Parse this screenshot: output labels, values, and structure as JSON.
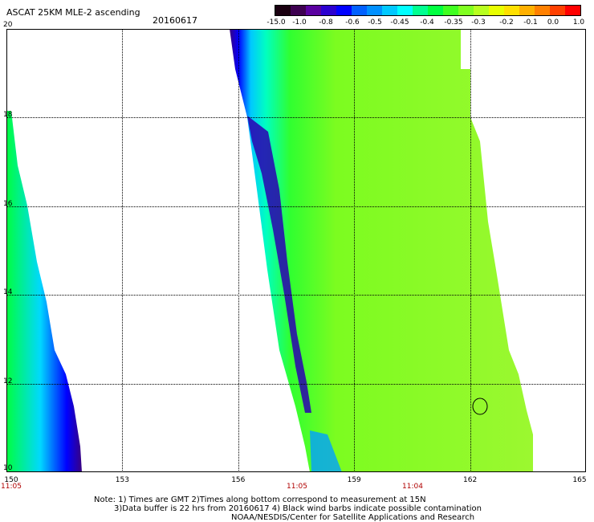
{
  "title": "ASCAT 25KM MLE-2 ascending",
  "date": "20160617",
  "colorbar": {
    "labels": [
      "-15.0",
      "-1.0",
      "-0.8",
      "-0.6",
      "-0.5",
      "-0.45",
      "-0.4",
      "-0.35",
      "-0.3",
      "-0.2",
      "-0.1",
      "0.0",
      "1.0"
    ],
    "colors": [
      "#1a0010",
      "#3d0050",
      "#5a00a0",
      "#2b00d0",
      "#0000ff",
      "#0060ff",
      "#0090ff",
      "#00c8ff",
      "#00ffff",
      "#00ff90",
      "#00ff40",
      "#40ff20",
      "#80ff20",
      "#b8ff20",
      "#e8ff00",
      "#ffe000",
      "#ffb000",
      "#ff8000",
      "#ff4000",
      "#ff0000"
    ]
  },
  "axes": {
    "y_ticks": [
      "20",
      "18",
      "16",
      "14",
      "12",
      "10"
    ],
    "x_ticks": [
      "150",
      "153",
      "156",
      "159",
      "162",
      "165"
    ],
    "time_labels": [
      "11:05",
      "11:05",
      "11:04"
    ]
  },
  "notes": {
    "line1": "Note: 1) Times are GMT 2)Times along bottom correspond to measurement at 15N",
    "line2": "3)Data buffer is 22 hrs from 20160617 4) Black wind barbs indicate possible contamination",
    "line3": "NOAA/NESDIS/Center for Satellite Applications and Research"
  }
}
